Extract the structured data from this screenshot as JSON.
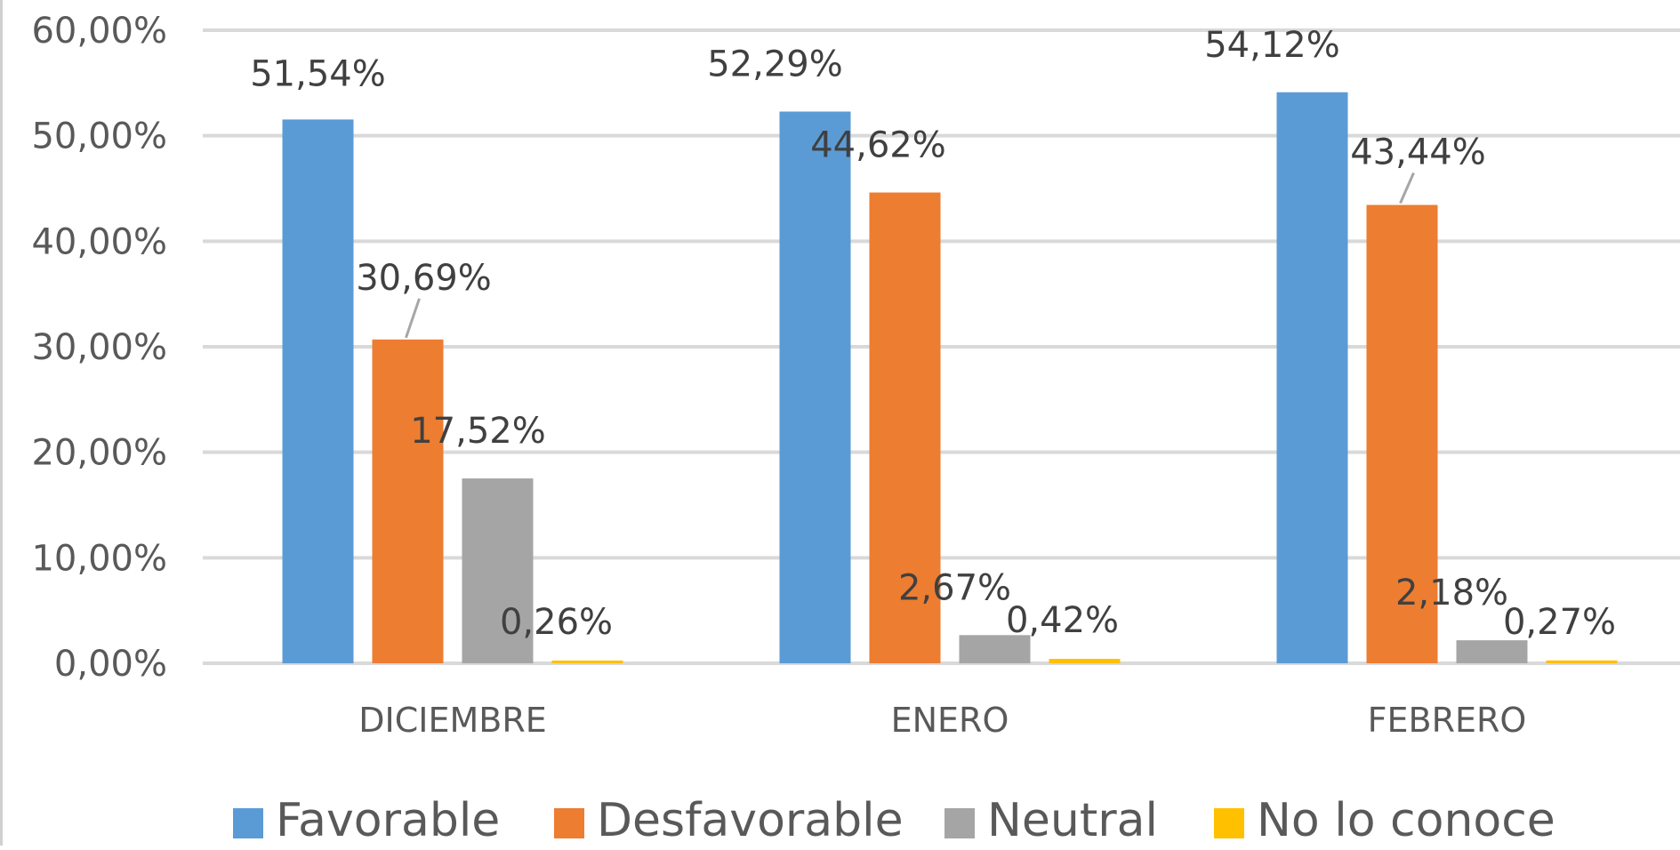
{
  "chart_data": {
    "type": "bar",
    "title": "",
    "xlabel": "",
    "ylabel": "",
    "categories": [
      "DICIEMBRE",
      "ENERO",
      "FEBRERO"
    ],
    "series": [
      {
        "name": "Favorable",
        "values": [
          51.54,
          52.29,
          54.12
        ],
        "labels": [
          "51,54%",
          "52,29%",
          "54,12%"
        ],
        "color": "#5B9BD5"
      },
      {
        "name": "Desfavorable",
        "values": [
          30.69,
          44.62,
          43.44
        ],
        "labels": [
          "30,69%",
          "44,62%",
          "43,44%"
        ],
        "color": "#ED7D31"
      },
      {
        "name": "Neutral",
        "values": [
          17.52,
          2.67,
          2.18
        ],
        "labels": [
          "17,52%",
          "2,67%",
          "2,18%"
        ],
        "color": "#A5A5A5"
      },
      {
        "name": "No lo conoce",
        "values": [
          0.26,
          0.42,
          0.27
        ],
        "labels": [
          "0,26%",
          "0,42%",
          "0,27%"
        ],
        "color": "#FFC000"
      }
    ],
    "ylim": [
      0,
      60
    ],
    "yticks": [
      0,
      10,
      20,
      30,
      40,
      50,
      60
    ],
    "ytick_labels": [
      "0,00%",
      "10,00%",
      "20,00%",
      "30,00%",
      "40,00%",
      "50,00%",
      "60,00%"
    ],
    "grid": true,
    "legend": "bottom",
    "colors": {
      "gridline": "#D9D9D9",
      "axis_text": "#595959",
      "label_text": "#404040"
    }
  }
}
